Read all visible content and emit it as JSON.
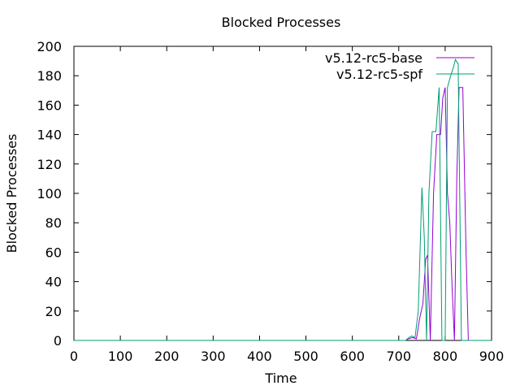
{
  "chart_data": {
    "type": "line",
    "title": "Blocked Processes",
    "xlabel": "Time",
    "ylabel": "Blocked Processes",
    "xlim": [
      0,
      900
    ],
    "ylim": [
      0,
      200
    ],
    "xticks": [
      0,
      100,
      200,
      300,
      400,
      500,
      600,
      700,
      800,
      900
    ],
    "yticks": [
      0,
      20,
      40,
      60,
      80,
      100,
      120,
      140,
      160,
      180,
      200
    ],
    "grid": false,
    "legend_position": "top-right",
    "series": [
      {
        "name": "v5.12-rc5-base",
        "color": "#9400d3",
        "x": [
          0,
          700,
          715,
          720,
          730,
          738,
          745,
          752,
          758,
          762,
          768,
          775,
          782,
          790,
          795,
          800,
          805,
          810,
          815,
          820,
          825,
          830,
          835,
          838,
          845,
          850,
          900
        ],
        "y": [
          0,
          0,
          0,
          1,
          2,
          1,
          15,
          25,
          55,
          58,
          0,
          100,
          140,
          140,
          165,
          172,
          100,
          80,
          35,
          0,
          110,
          172,
          172,
          172,
          60,
          0,
          0
        ]
      },
      {
        "name": "v5.12-rc5-spf",
        "color": "#009e73",
        "x": [
          0,
          700,
          715,
          722,
          728,
          735,
          742,
          750,
          755,
          760,
          765,
          772,
          780,
          787,
          793,
          800,
          805,
          812,
          818,
          822,
          828,
          835,
          840,
          900
        ],
        "y": [
          0,
          0,
          0,
          2,
          3,
          2,
          20,
          104,
          70,
          0,
          100,
          142,
          142,
          172,
          0,
          0,
          172,
          180,
          186,
          191,
          188,
          0,
          0,
          0
        ]
      }
    ]
  }
}
